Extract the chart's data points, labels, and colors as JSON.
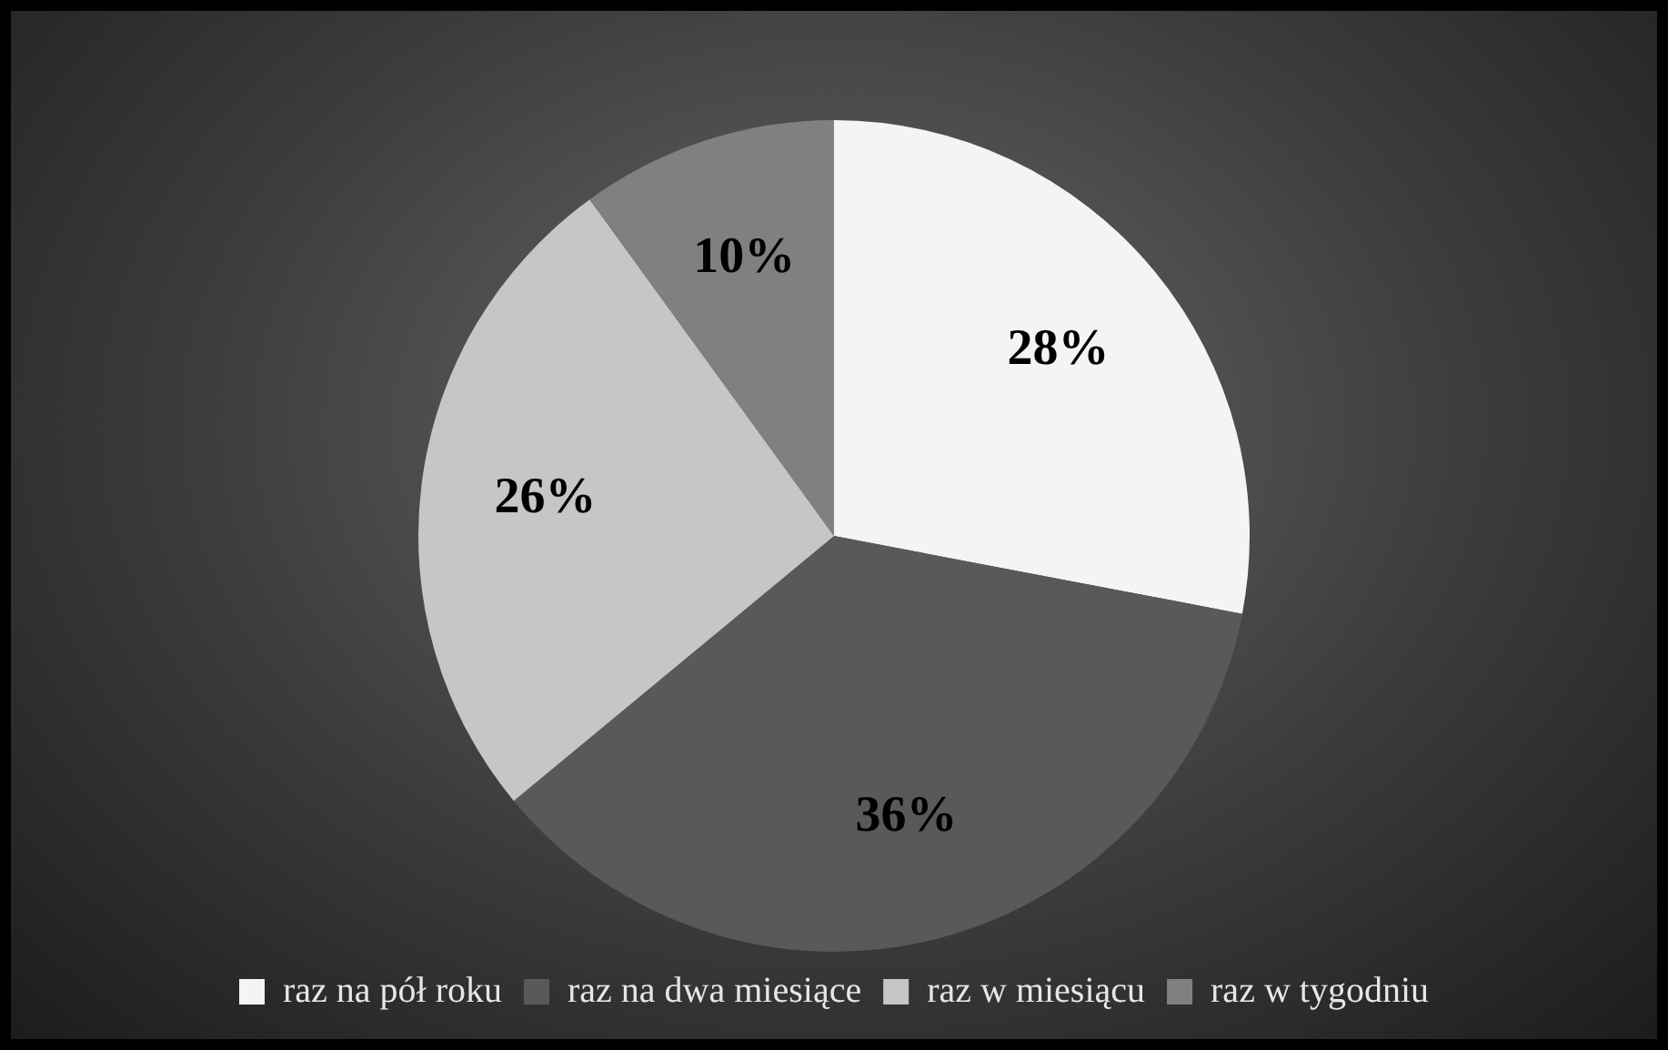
{
  "chart_data": {
    "type": "pie",
    "categories": [
      "raz na pół roku",
      "raz na dwa miesiące",
      "raz w miesiącu",
      "raz w tygodniu"
    ],
    "values": [
      28,
      36,
      26,
      10
    ],
    "colors": [
      "#f4f4f4",
      "#595959",
      "#c6c6c6",
      "#808080"
    ],
    "value_labels": [
      "28%",
      "36%",
      "26%",
      "10%"
    ],
    "legend": "bottom"
  }
}
